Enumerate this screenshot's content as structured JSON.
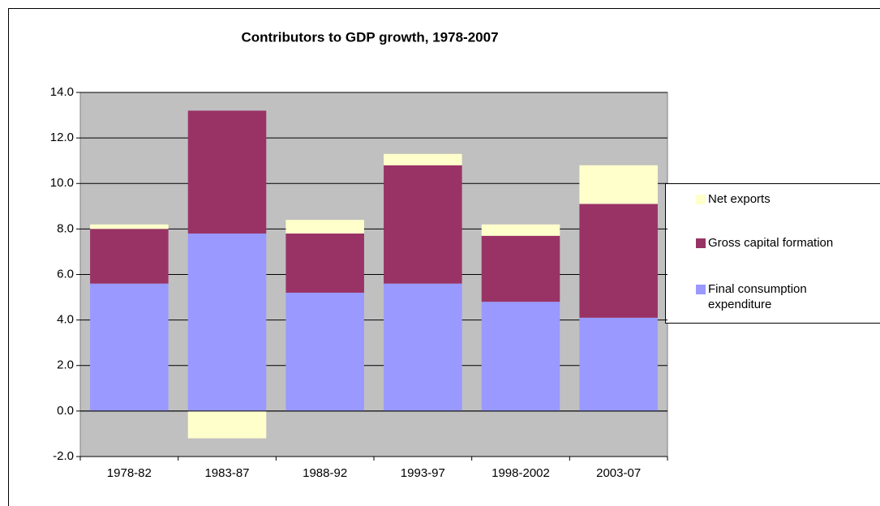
{
  "chart_data": {
    "type": "bar",
    "stacked": true,
    "title": "Contributors to GDP growth, 1978-2007",
    "categories": [
      "1978-82",
      "1983-87",
      "1988-92",
      "1993-97",
      "1998-2002",
      "2003-07"
    ],
    "series": [
      {
        "name": "Final consumption expenditure",
        "color": "#9999ff",
        "values": [
          5.6,
          7.8,
          5.2,
          5.6,
          4.8,
          4.1
        ]
      },
      {
        "name": "Gross capital formation",
        "color": "#993366",
        "values": [
          2.4,
          5.4,
          2.6,
          5.2,
          2.9,
          5.0
        ]
      },
      {
        "name": "Net exports",
        "color": "#ffffcc",
        "values": [
          0.2,
          -1.2,
          0.6,
          0.5,
          0.5,
          1.7
        ]
      }
    ],
    "ylim": [
      -2,
      14
    ],
    "yticks": [
      {
        "value": -2,
        "label": "-2.0"
      },
      {
        "value": 0,
        "label": "0.0"
      },
      {
        "value": 2,
        "label": "2.0"
      },
      {
        "value": 4,
        "label": "4.0"
      },
      {
        "value": 6,
        "label": "6.0"
      },
      {
        "value": 8,
        "label": "8.0"
      },
      {
        "value": 10,
        "label": "10.0"
      },
      {
        "value": 12,
        "label": "12.0"
      },
      {
        "value": 14,
        "label": "14.0"
      }
    ],
    "grid": true,
    "legend": "right"
  }
}
